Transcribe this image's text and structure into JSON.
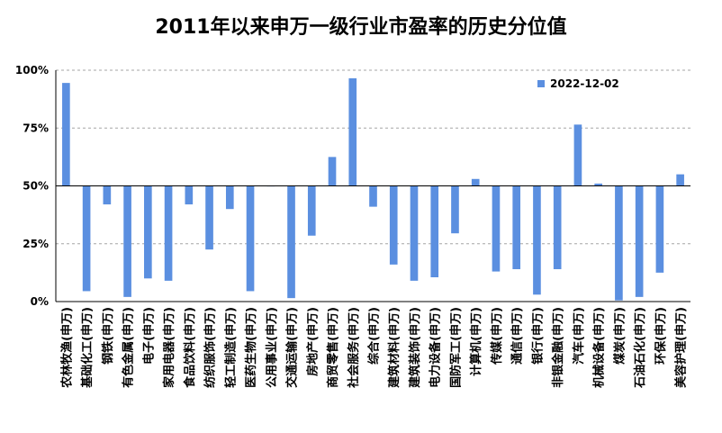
{
  "chart_data": {
    "type": "bar",
    "title": "2011年以来申万一级行业市盈率的历史分位值",
    "categories": [
      "农林牧渔(申万)",
      "基础化工(申万)",
      "钢铁(申万)",
      "有色金属(申万)",
      "电子(申万)",
      "家用电器(申万)",
      "食品饮料(申万)",
      "纺织服饰(申万)",
      "轻工制造(申万)",
      "医药生物(申万)",
      "公用事业(申万)",
      "交通运输(申万)",
      "房地产(申万)",
      "商贸零售(申万)",
      "社会服务(申万)",
      "综合(申万)",
      "建筑材料(申万)",
      "建筑装饰(申万)",
      "电力设备(申万)",
      "国防军工(申万)",
      "计算机(申万)",
      "传媒(申万)",
      "通信(申万)",
      "银行(申万)",
      "非银金融(申万)",
      "汽车(申万)",
      "机械设备(申万)",
      "煤炭(申万)",
      "石油石化(申万)",
      "环保(申万)",
      "美容护理(申万)"
    ],
    "series": [
      {
        "name": "2022-12-02",
        "color": "#5B8FE0",
        "values": [
          94.5,
          4.5,
          42,
          2,
          10,
          9,
          42,
          22.5,
          40,
          4.5,
          50,
          1.5,
          28.5,
          62.5,
          96.5,
          41,
          16,
          9,
          10.5,
          29.5,
          53,
          13,
          14,
          3,
          14,
          76.5,
          51,
          0.5,
          2,
          12.5,
          55
        ]
      }
    ],
    "baseline": 50,
    "ylim": [
      0,
      100
    ],
    "yticks": [
      "0%",
      "25%",
      "50%",
      "75%",
      "100%"
    ],
    "ytick_values": [
      0,
      25,
      50,
      75,
      100
    ],
    "grid": true,
    "legend_position": "top-right"
  }
}
